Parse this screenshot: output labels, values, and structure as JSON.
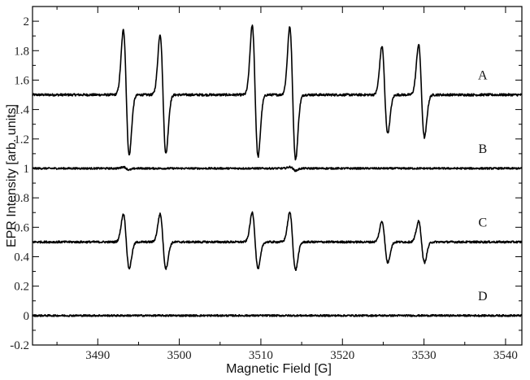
{
  "chart_data": {
    "type": "line",
    "title": "",
    "xlabel": "Magnetic Field [G]",
    "ylabel": "EPR Intensity [arb. units]",
    "xlim": [
      3482,
      3542
    ],
    "ylim": [
      -0.2,
      2.1
    ],
    "x_ticks": [
      3490,
      3500,
      3510,
      3520,
      3530,
      3540
    ],
    "y_ticks": [
      -0.2,
      0,
      0.2,
      0.4,
      0.6,
      0.8,
      1,
      1.2,
      1.4,
      1.6,
      1.8,
      2
    ],
    "y_tick_labels": [
      "-0.2",
      "0",
      "0.2",
      "0.4",
      "0.6",
      "0.8",
      "1",
      "1.2",
      "1.4",
      "1.6",
      "1.8",
      "2"
    ],
    "grid": false,
    "line_color": "#000000",
    "line_centers_G": [
      3493.5,
      3498.0,
      3509.3,
      3513.9,
      3525.2,
      3529.7
    ],
    "series": [
      {
        "name": "A",
        "baseline": 1.5,
        "peak_max": [
          1.94,
          1.91,
          1.97,
          1.96,
          1.83,
          1.84
        ],
        "peak_min": [
          1.09,
          1.1,
          1.08,
          1.06,
          1.24,
          1.21
        ],
        "noise": 0.008
      },
      {
        "name": "B",
        "baseline": 1.0,
        "peak_max": [
          1.01,
          1.0,
          1.0,
          1.01,
          1.0,
          1.0
        ],
        "peak_min": [
          0.99,
          1.0,
          1.0,
          0.985,
          1.0,
          1.0
        ],
        "noise": 0.006
      },
      {
        "name": "C",
        "baseline": 0.5,
        "peak_max": [
          0.69,
          0.69,
          0.7,
          0.7,
          0.64,
          0.64
        ],
        "peak_min": [
          0.32,
          0.32,
          0.32,
          0.31,
          0.36,
          0.36
        ],
        "noise": 0.007
      },
      {
        "name": "D",
        "baseline": 0.0,
        "peak_max": [
          0,
          0,
          0,
          0,
          0,
          0
        ],
        "peak_min": [
          0,
          0,
          0,
          0,
          0,
          0
        ],
        "noise": 0.006
      }
    ],
    "series_label_x": 3537.2
  }
}
